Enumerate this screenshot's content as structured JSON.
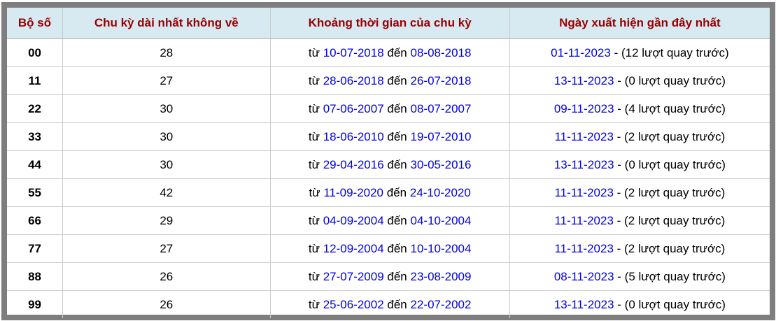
{
  "colors": {
    "frame_border": "#7e7e7e",
    "header_bg": "#d7eaf2",
    "header_text": "#990000",
    "link_blue": "#0000e8",
    "row_divider": "#cccccc"
  },
  "table": {
    "headers": [
      "Bộ số",
      "Chu kỳ dài nhất không về",
      "Khoảng thời gian của chu kỳ",
      "Ngày xuất hiện gần đây nhất"
    ],
    "rows": [
      {
        "number": "00",
        "cycle": "28",
        "from_label": "từ",
        "from_date": "10-07-2018",
        "to_label": "đến",
        "to_date": "08-08-2018",
        "recent_date": "01-11-2023",
        "recent_note": "- (12 lượt quay trước)"
      },
      {
        "number": "11",
        "cycle": "27",
        "from_label": "từ",
        "from_date": "28-06-2018",
        "to_label": "đến",
        "to_date": "26-07-2018",
        "recent_date": "13-11-2023",
        "recent_note": "- (0 lượt quay trước)"
      },
      {
        "number": "22",
        "cycle": "30",
        "from_label": "từ",
        "from_date": "07-06-2007",
        "to_label": "đến",
        "to_date": "08-07-2007",
        "recent_date": "09-11-2023",
        "recent_note": "- (4 lượt quay trước)"
      },
      {
        "number": "33",
        "cycle": "30",
        "from_label": "từ",
        "from_date": "18-06-2010",
        "to_label": "đến",
        "to_date": "19-07-2010",
        "recent_date": "11-11-2023",
        "recent_note": "- (2 lượt quay trước)"
      },
      {
        "number": "44",
        "cycle": "30",
        "from_label": "từ",
        "from_date": "29-04-2016",
        "to_label": "đến",
        "to_date": "30-05-2016",
        "recent_date": "13-11-2023",
        "recent_note": "- (0 lượt quay trước)"
      },
      {
        "number": "55",
        "cycle": "42",
        "from_label": "từ",
        "from_date": "11-09-2020",
        "to_label": "đến",
        "to_date": "24-10-2020",
        "recent_date": "11-11-2023",
        "recent_note": "- (2 lượt quay trước)"
      },
      {
        "number": "66",
        "cycle": "29",
        "from_label": "từ",
        "from_date": "04-09-2004",
        "to_label": "đến",
        "to_date": "04-10-2004",
        "recent_date": "11-11-2023",
        "recent_note": "- (2 lượt quay trước)"
      },
      {
        "number": "77",
        "cycle": "27",
        "from_label": "từ",
        "from_date": "12-09-2004",
        "to_label": "đến",
        "to_date": "10-10-2004",
        "recent_date": "11-11-2023",
        "recent_note": "- (2 lượt quay trước)"
      },
      {
        "number": "88",
        "cycle": "26",
        "from_label": "từ",
        "from_date": "27-07-2009",
        "to_label": "đến",
        "to_date": "23-08-2009",
        "recent_date": "08-11-2023",
        "recent_note": "- (5 lượt quay trước)"
      },
      {
        "number": "99",
        "cycle": "26",
        "from_label": "từ",
        "from_date": "25-06-2002",
        "to_label": "đến",
        "to_date": "22-07-2002",
        "recent_date": "13-11-2023",
        "recent_note": "- (0 lượt quay trước)"
      }
    ]
  }
}
